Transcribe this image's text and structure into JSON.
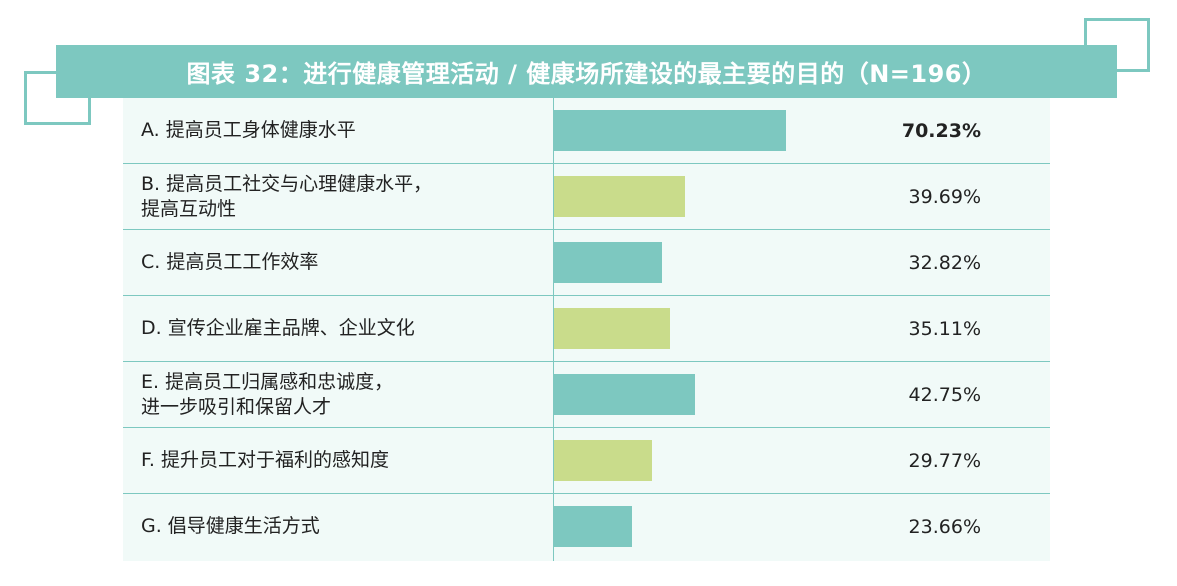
{
  "title": "图表 32：进行健康管理活动 / 健康场所建设的最主要的目的（N=196）",
  "colors": {
    "teal": "#7dc8c0",
    "green": "#c9dc8b",
    "background": "#f1faf8"
  },
  "chart_data": {
    "type": "bar",
    "orientation": "horizontal",
    "title": "图表 32：进行健康管理活动 / 健康场所建设的最主要的目的（N=196）",
    "categories": [
      "A. 提高员工身体健康水平",
      "B. 提高员工社交与心理健康水平，\n提高互动性",
      "C. 提高员工工作效率",
      "D. 宣传企业雇主品牌、企业文化",
      "E. 提高员工归属感和忠诚度，\n进一步吸引和保留人才",
      "F. 提升员工对于福利的感知度",
      "G. 倡导健康生活方式"
    ],
    "values": [
      70.23,
      39.69,
      32.82,
      35.11,
      42.75,
      29.77,
      23.66
    ],
    "value_labels": [
      "70.23%",
      "39.69%",
      "32.82%",
      "35.11%",
      "42.75%",
      "29.77%",
      "23.66%"
    ],
    "bar_colors": [
      "#7dc8c0",
      "#c9dc8b",
      "#7dc8c0",
      "#c9dc8b",
      "#7dc8c0",
      "#c9dc8b",
      "#7dc8c0"
    ],
    "highlight_index": 0,
    "unit": "%",
    "xlim": [
      0,
      100
    ]
  }
}
